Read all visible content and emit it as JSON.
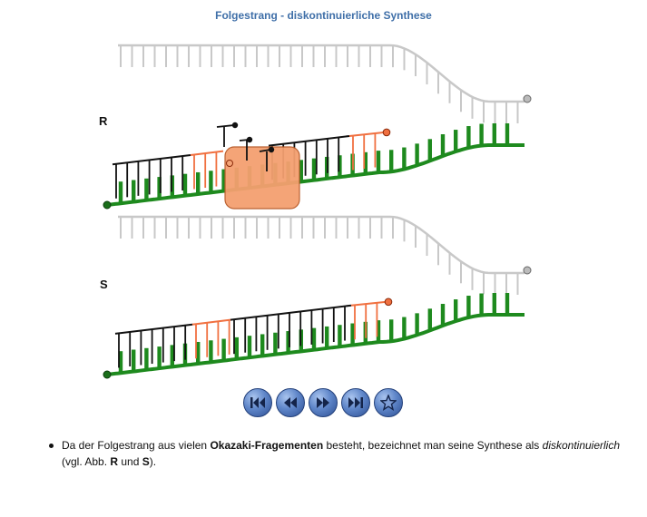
{
  "title": "Folgestrang - diskontinuierliche Synthese",
  "panels": {
    "r_label": "R",
    "s_label": "S"
  },
  "colors": {
    "template_strand": "#1e8a1e",
    "okazaki_black": "#111111",
    "rna_primer": "#f07040",
    "parental_strand": "#c8c8c8",
    "enzyme": "#f4a070",
    "title": "#3f6fa8"
  },
  "controls": {
    "first": "skip-to-start-icon",
    "back": "rewind-icon",
    "forward": "fast-forward-icon",
    "last": "skip-to-end-icon",
    "extra": "star-icon"
  },
  "caption": {
    "part1": "Da der Folgestrang aus vielen ",
    "bold1": "Okazaki-Fragementen",
    "part2": " besteht, bezeichnet man seine Synthese als ",
    "italic1": "diskontinuierlich",
    "part3": "(vgl. Abb. ",
    "bold2": "R",
    "part4": " und ",
    "bold3": "S",
    "part5": ")."
  }
}
